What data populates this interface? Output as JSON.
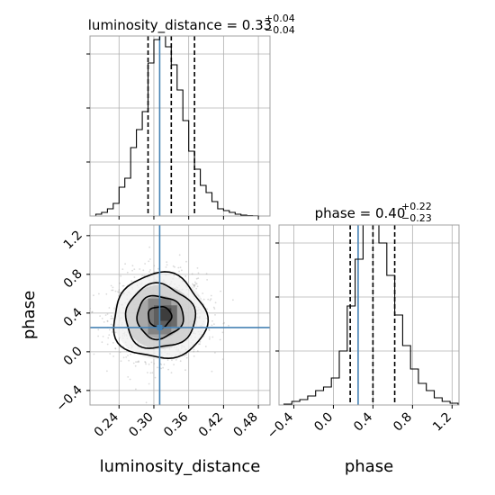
{
  "chart_data": {
    "type": "corner",
    "parameters": [
      "luminosity_distance",
      "phase"
    ],
    "truths": {
      "luminosity_distance": 0.31,
      "phase": 0.25
    },
    "panels": [
      {
        "id": "hist-luminosity_distance",
        "type": "histogram",
        "title": {
          "main": "luminosity_distance = 0.33",
          "sup": "+0.04",
          "sub": "−0.04"
        },
        "xlim": [
          0.19,
          0.5
        ],
        "ylim": [
          0,
          1.0
        ],
        "bin_edges": [
          0.2,
          0.21,
          0.22,
          0.23,
          0.24,
          0.25,
          0.26,
          0.27,
          0.28,
          0.29,
          0.3,
          0.31,
          0.32,
          0.33,
          0.34,
          0.35,
          0.36,
          0.37,
          0.38,
          0.39,
          0.4,
          0.41,
          0.42,
          0.43,
          0.44,
          0.45,
          0.46,
          0.47,
          0.48,
          0.49
        ],
        "counts": [
          0.01,
          0.02,
          0.04,
          0.07,
          0.16,
          0.21,
          0.38,
          0.48,
          0.58,
          0.85,
          0.98,
          1.0,
          0.94,
          0.84,
          0.7,
          0.53,
          0.36,
          0.26,
          0.17,
          0.13,
          0.08,
          0.04,
          0.03,
          0.02,
          0.01,
          0.005,
          0.002,
          0.001,
          0.0
        ],
        "quantiles": [
          0.29,
          0.33,
          0.37
        ],
        "truth": 0.31,
        "yticks": [
          0.3,
          0.6,
          0.9
        ],
        "xtick_values": [
          0.24,
          0.3,
          0.36,
          0.42,
          0.48
        ],
        "show_x_ticklabels": false,
        "show_y_ticklabels": false,
        "grid": true
      },
      {
        "id": "hist-phase",
        "type": "histogram",
        "title": {
          "main": "phase = 0.40",
          "sup": "+0.22",
          "sub": "−0.23"
        },
        "xlim": [
          -0.55,
          1.27
        ],
        "ylim": [
          0,
          1.0
        ],
        "bin_edges": [
          -0.5,
          -0.42,
          -0.34,
          -0.26,
          -0.18,
          -0.1,
          -0.02,
          0.06,
          0.14,
          0.22,
          0.3,
          0.38,
          0.46,
          0.54,
          0.62,
          0.7,
          0.78,
          0.86,
          0.94,
          1.02,
          1.1,
          1.18,
          1.26
        ],
        "counts": [
          0.005,
          0.02,
          0.03,
          0.05,
          0.08,
          0.1,
          0.15,
          0.3,
          0.55,
          0.81,
          1.0,
          1.0,
          0.9,
          0.72,
          0.5,
          0.33,
          0.2,
          0.12,
          0.08,
          0.04,
          0.02,
          0.01
        ],
        "quantiles": [
          0.17,
          0.4,
          0.62
        ],
        "truth": 0.25,
        "yticks": [
          0.3,
          0.6,
          0.9
        ],
        "xtick_values": [
          -0.4,
          0.0,
          0.4,
          0.8,
          1.2
        ],
        "xtick_labels": [
          "−0.4",
          "0.0",
          "0.4",
          "0.8",
          "1.2"
        ],
        "xlabel": "phase",
        "show_y_ticklabels": false,
        "grid": true
      },
      {
        "id": "joint",
        "type": "2d-density",
        "xlim": [
          0.19,
          0.5
        ],
        "ylim": [
          -0.55,
          1.31
        ],
        "center": [
          0.31,
          0.36
        ],
        "sigma": [
          0.04,
          0.22
        ],
        "truth": [
          0.31,
          0.25
        ],
        "xtick_values": [
          0.24,
          0.3,
          0.36,
          0.42,
          0.48
        ],
        "xtick_labels": [
          "0.24",
          "0.30",
          "0.36",
          "0.42",
          "0.48"
        ],
        "ytick_values": [
          -0.4,
          0.0,
          0.4,
          0.8,
          1.2
        ],
        "ytick_labels": [
          "−0.4",
          "0.0",
          "0.4",
          "0.8",
          "1.2"
        ],
        "xlabel": "luminosity_distance",
        "ylabel": "phase",
        "contour_levels": [
          0.5,
          1.0,
          1.5,
          2.0
        ],
        "density_cells": [
          {
            "x": [
              0.29,
              0.33
            ],
            "y": [
              0.18,
              0.55
            ],
            "shade": "#777777"
          },
          {
            "x": [
              0.3,
              0.34
            ],
            "y": [
              0.26,
              0.48
            ],
            "shade": "#555555"
          },
          {
            "x": [
              0.31,
              0.33
            ],
            "y": [
              0.32,
              0.45
            ],
            "shade": "#333333"
          }
        ],
        "grid": true
      }
    ],
    "colors": {
      "truth": "#4682b4",
      "hist": "#000000",
      "grid": "#b0b0b0",
      "points": "#999999"
    }
  }
}
